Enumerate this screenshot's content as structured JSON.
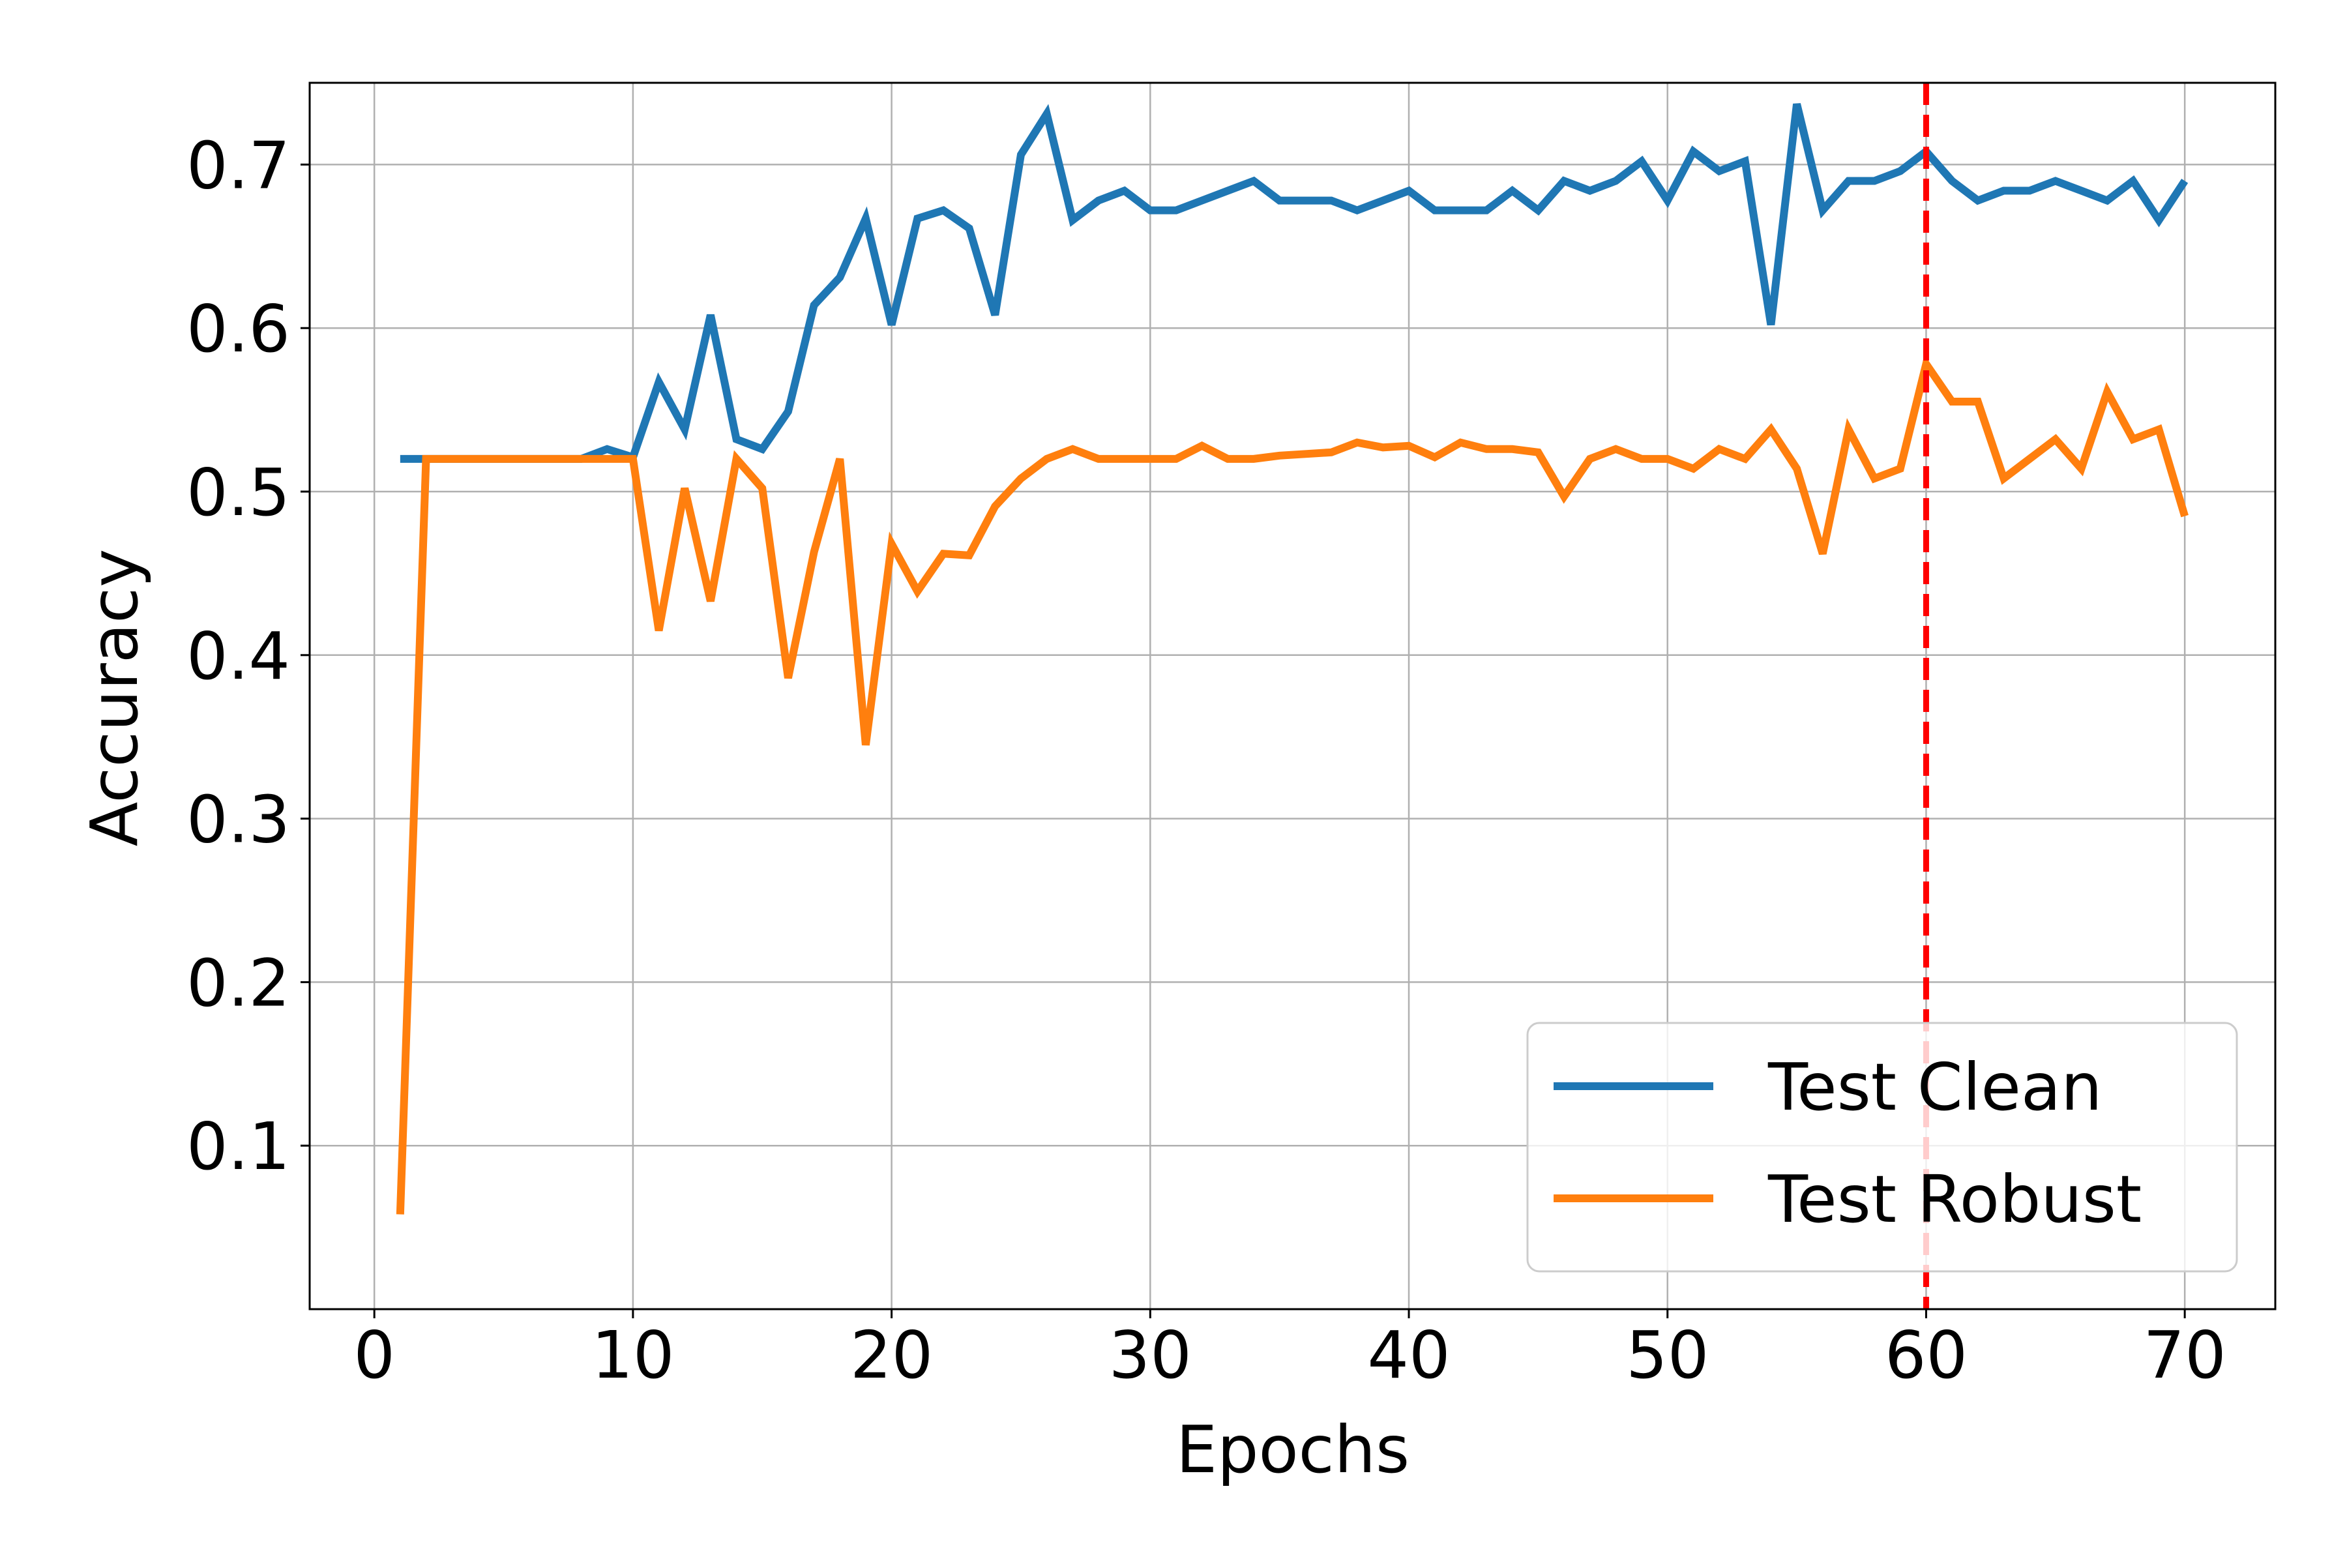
{
  "chart_data": {
    "type": "line",
    "title": "",
    "xlabel": "Epochs",
    "ylabel": "Accuracy",
    "xlim": [
      -2.5,
      73.5
    ],
    "ylim": [
      0.0,
      0.75
    ],
    "xticks": [
      0,
      10,
      20,
      30,
      40,
      50,
      60,
      70
    ],
    "yticks": [
      0.1,
      0.2,
      0.3,
      0.4,
      0.5,
      0.6,
      0.7
    ],
    "xtick_labels": [
      "0",
      "10",
      "20",
      "30",
      "40",
      "50",
      "60",
      "70"
    ],
    "ytick_labels": [
      "0.1",
      "0.2",
      "0.3",
      "0.4",
      "0.5",
      "0.6",
      "0.7"
    ],
    "grid": true,
    "legend_position": "lower-right",
    "x": [
      1,
      2,
      3,
      4,
      5,
      6,
      7,
      8,
      9,
      10,
      11,
      12,
      13,
      14,
      15,
      16,
      17,
      18,
      19,
      20,
      21,
      22,
      23,
      24,
      25,
      26,
      27,
      28,
      29,
      30,
      31,
      32,
      33,
      34,
      35,
      36,
      37,
      38,
      39,
      40,
      41,
      42,
      43,
      44,
      45,
      46,
      47,
      48,
      49,
      50,
      51,
      52,
      53,
      54,
      55,
      56,
      57,
      58,
      59,
      60,
      61,
      62,
      63,
      64,
      65,
      66,
      67,
      68,
      69,
      70
    ],
    "series": [
      {
        "name": "Test Clean",
        "color": "#1f77b4",
        "values": [
          0.52,
          0.52,
          0.52,
          0.52,
          0.52,
          0.52,
          0.52,
          0.52,
          0.526,
          0.521,
          0.567,
          0.538,
          0.608,
          0.532,
          0.526,
          0.549,
          0.614,
          0.631,
          0.667,
          0.602,
          0.667,
          0.672,
          0.661,
          0.608,
          0.706,
          0.731,
          0.666,
          0.678,
          0.684,
          0.672,
          0.672,
          0.678,
          0.684,
          0.69,
          0.678,
          0.678,
          0.678,
          0.672,
          0.678,
          0.684,
          0.672,
          0.672,
          0.672,
          0.684,
          0.672,
          0.69,
          0.684,
          0.69,
          0.702,
          0.678,
          0.708,
          0.696,
          0.702,
          0.602,
          0.737,
          0.672,
          0.69,
          0.69,
          0.696,
          0.708,
          0.69,
          0.678,
          0.684,
          0.684,
          0.69,
          0.684,
          0.678,
          0.69,
          0.666,
          0.69
        ]
      },
      {
        "name": "Test Robust",
        "color": "#ff7f0e",
        "values": [
          0.058,
          0.52,
          0.52,
          0.52,
          0.52,
          0.52,
          0.52,
          0.52,
          0.52,
          0.52,
          0.415,
          0.502,
          0.433,
          0.52,
          0.502,
          0.386,
          0.463,
          0.52,
          0.345,
          0.468,
          0.439,
          0.462,
          0.461,
          0.491,
          0.508,
          0.52,
          0.526,
          0.52,
          0.52,
          0.52,
          0.52,
          0.528,
          0.52,
          0.52,
          0.522,
          0.523,
          0.524,
          0.53,
          0.527,
          0.528,
          0.521,
          0.53,
          0.526,
          0.526,
          0.524,
          0.497,
          0.52,
          0.526,
          0.52,
          0.52,
          0.514,
          0.526,
          0.52,
          0.538,
          0.514,
          0.462,
          0.538,
          0.508,
          0.514,
          0.578,
          0.555,
          0.555,
          0.508,
          0.52,
          0.532,
          0.514,
          0.561,
          0.532,
          0.538,
          0.485
        ]
      }
    ],
    "annotations": [
      {
        "kind": "vertical-line",
        "x": 60,
        "color": "#ff0000",
        "style": "dashed"
      }
    ]
  }
}
